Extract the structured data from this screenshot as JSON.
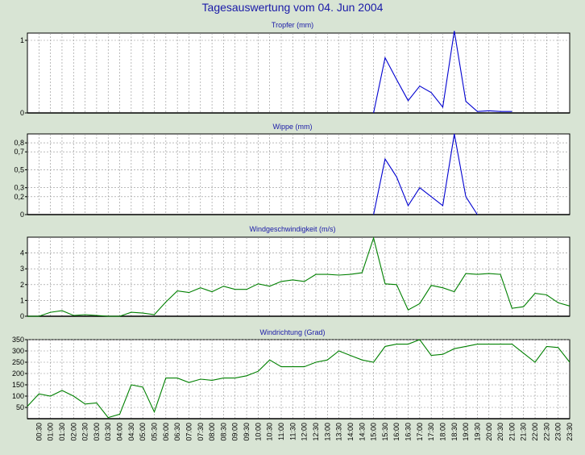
{
  "page_title": "Tagesauswertung vom 04. Jun 2004",
  "colors": {
    "background": "#d8e4d4",
    "plot_bg": "#ffffff",
    "grid": "#909090",
    "rain_series": "#0000d0",
    "wind_series": "#008000"
  },
  "chart_data": [
    {
      "type": "line",
      "title": "Tropfer (mm)",
      "ylim": [
        0,
        1.1
      ],
      "yticks": [
        0,
        1
      ],
      "color": "#0000d0",
      "x": [
        "00:00",
        "00:30",
        "01:00",
        "01:30",
        "02:00",
        "02:30",
        "03:00",
        "03:30",
        "04:00",
        "04:30",
        "05:00",
        "05:30",
        "06:00",
        "06:30",
        "07:00",
        "07:30",
        "08:00",
        "08:30",
        "09:00",
        "09:30",
        "10:00",
        "10:30",
        "11:00",
        "11:30",
        "12:00",
        "12:30",
        "13:00",
        "13:30",
        "14:00",
        "14:30",
        "15:00",
        "15:30",
        "16:00",
        "16:30",
        "17:00",
        "17:30",
        "18:00",
        "18:30",
        "19:00",
        "19:30",
        "20:00",
        "20:30",
        "21:00"
      ],
      "values": [
        null,
        null,
        null,
        null,
        null,
        null,
        null,
        null,
        null,
        null,
        null,
        null,
        null,
        null,
        null,
        null,
        null,
        null,
        null,
        null,
        null,
        null,
        null,
        null,
        null,
        null,
        null,
        null,
        null,
        null,
        0,
        0.76,
        0.46,
        0.17,
        0.37,
        0.28,
        0.08,
        1.13,
        0.16,
        0.02,
        0.03,
        0.02,
        0.02
      ],
      "grid": true
    },
    {
      "type": "line",
      "title": "Wippe (mm)",
      "ylim": [
        0,
        0.9
      ],
      "yticks": [
        0,
        0.2,
        0.3,
        0.5,
        0.7,
        0.8
      ],
      "ytick_labels": [
        "0",
        "0,2",
        "0,3",
        "0,5",
        "0,7",
        "0,8"
      ],
      "color": "#0000d0",
      "x": [
        "00:00",
        "00:30",
        "01:00",
        "01:30",
        "02:00",
        "02:30",
        "03:00",
        "03:30",
        "04:00",
        "04:30",
        "05:00",
        "05:30",
        "06:00",
        "06:30",
        "07:00",
        "07:30",
        "08:00",
        "08:30",
        "09:00",
        "09:30",
        "10:00",
        "10:30",
        "11:00",
        "11:30",
        "12:00",
        "12:30",
        "13:00",
        "13:30",
        "14:00",
        "14:30",
        "15:00",
        "15:30",
        "16:00",
        "16:30",
        "17:00",
        "17:30",
        "18:00",
        "18:30",
        "19:00",
        "19:30"
      ],
      "values": [
        null,
        null,
        null,
        null,
        null,
        null,
        null,
        null,
        null,
        null,
        null,
        null,
        null,
        null,
        null,
        null,
        null,
        null,
        null,
        null,
        null,
        null,
        null,
        null,
        null,
        null,
        null,
        null,
        null,
        null,
        0,
        0.62,
        0.42,
        0.1,
        0.3,
        0.2,
        0.1,
        0.9,
        0.2,
        0
      ],
      "grid": true
    },
    {
      "type": "line",
      "title": "Windgeschwindigkeit (m/s)",
      "ylim": [
        0,
        5
      ],
      "yticks": [
        0,
        1,
        2,
        3,
        4
      ],
      "color": "#008000",
      "x": [
        "00:00",
        "00:30",
        "01:00",
        "01:30",
        "02:00",
        "02:30",
        "03:00",
        "03:30",
        "04:00",
        "04:30",
        "05:00",
        "05:30",
        "06:00",
        "06:30",
        "07:00",
        "07:30",
        "08:00",
        "08:30",
        "09:00",
        "09:30",
        "10:00",
        "10:30",
        "11:00",
        "11:30",
        "12:00",
        "12:30",
        "13:00",
        "13:30",
        "14:00",
        "14:30",
        "15:00",
        "15:30",
        "16:00",
        "16:30",
        "17:00",
        "17:30",
        "18:00",
        "18:30",
        "19:00",
        "19:30",
        "20:00",
        "20:30",
        "21:00",
        "21:30",
        "22:00",
        "22:30",
        "23:00",
        "23:30"
      ],
      "values": [
        0,
        0,
        0.25,
        0.35,
        0.05,
        0.1,
        0.05,
        0,
        0,
        0.25,
        0.2,
        0.1,
        0.9,
        1.6,
        1.5,
        1.8,
        1.55,
        1.9,
        1.7,
        1.7,
        2.05,
        1.9,
        2.2,
        2.3,
        2.2,
        2.65,
        2.65,
        2.6,
        2.65,
        2.75,
        4.95,
        2.05,
        2.0,
        0.4,
        0.8,
        1.95,
        1.8,
        1.55,
        2.7,
        2.65,
        2.7,
        2.65,
        0.5,
        0.6,
        1.45,
        1.35,
        0.85,
        0.65
      ],
      "grid": true
    },
    {
      "type": "line",
      "title": "Windrichtung (Grad)",
      "ylim": [
        0,
        350
      ],
      "yticks": [
        50,
        100,
        150,
        200,
        250,
        300,
        350
      ],
      "color": "#008000",
      "x": [
        "00:00",
        "00:30",
        "01:00",
        "01:30",
        "02:00",
        "02:30",
        "03:00",
        "03:30",
        "04:00",
        "04:30",
        "05:00",
        "05:30",
        "06:00",
        "06:30",
        "07:00",
        "07:30",
        "08:00",
        "08:30",
        "09:00",
        "09:30",
        "10:00",
        "10:30",
        "11:00",
        "11:30",
        "12:00",
        "12:30",
        "13:00",
        "13:30",
        "14:00",
        "14:30",
        "15:00",
        "15:30",
        "16:00",
        "16:30",
        "17:00",
        "17:30",
        "18:00",
        "18:30",
        "19:00",
        "19:30",
        "20:00",
        "20:30",
        "21:00",
        "21:30",
        "22:00",
        "22:30",
        "23:00",
        "23:30"
      ],
      "values": [
        55,
        110,
        100,
        125,
        100,
        65,
        70,
        5,
        20,
        150,
        140,
        30,
        180,
        180,
        160,
        175,
        170,
        180,
        180,
        190,
        210,
        260,
        230,
        230,
        230,
        250,
        260,
        300,
        280,
        260,
        250,
        320,
        330,
        330,
        350,
        280,
        285,
        310,
        320,
        330,
        330,
        330,
        330,
        290,
        250,
        320,
        315,
        250
      ],
      "grid": true
    }
  ],
  "x_axis": {
    "tick_labels": [
      "00:30",
      "01:00",
      "01:30",
      "02:00",
      "02:30",
      "03:00",
      "03:30",
      "04:00",
      "04:30",
      "05:00",
      "05:30",
      "06:00",
      "06:30",
      "07:00",
      "07:30",
      "08:00",
      "08:30",
      "09:00",
      "09:30",
      "10:00",
      "10:30",
      "11:00",
      "11:30",
      "12:00",
      "12:30",
      "13:00",
      "13:30",
      "14:00",
      "14:30",
      "15:00",
      "15:30",
      "16:00",
      "16:30",
      "17:00",
      "17:30",
      "18:00",
      "18:30",
      "19:00",
      "19:30",
      "20:00",
      "20:30",
      "21:00",
      "21:30",
      "22:00",
      "22:30",
      "23:00",
      "23:30"
    ]
  }
}
